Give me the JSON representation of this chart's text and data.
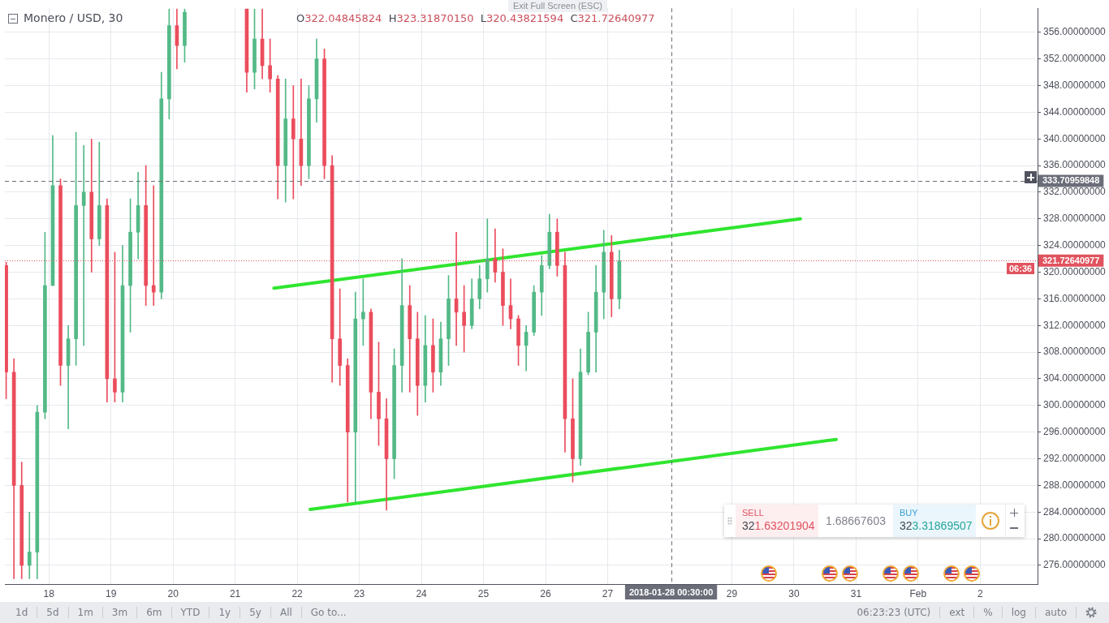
{
  "chart_data": {
    "type": "candlestick",
    "title": "Monero / USD, 30",
    "subtitle": "O322.04845824 H323.31870150 L320.43821594 C321.72640977",
    "x": [
      "2018-01-17T07:30",
      "2018-01-17T10:30",
      "2018-01-17T13:30",
      "2018-01-17T16:30",
      "2018-01-17T19:30",
      "2018-01-17T22:30",
      "2018-01-18T01:30",
      "2018-01-18T04:30",
      "2018-01-18T07:30",
      "2018-01-18T10:30",
      "2018-01-18T13:30",
      "2018-01-18T16:30",
      "2018-01-18T19:30",
      "2018-01-18T22:30",
      "2018-01-19T01:30",
      "2018-01-19T04:30",
      "2018-01-19T07:30",
      "2018-01-19T10:30",
      "2018-01-19T13:30",
      "2018-01-19T16:30",
      "2018-01-19T19:30",
      "2018-01-19T22:30",
      "2018-01-20T01:30",
      "2018-01-20T04:30",
      "2018-01-21T04:30",
      "2018-01-21T07:30",
      "2018-01-21T10:30",
      "2018-01-21T13:30",
      "2018-01-21T16:30",
      "2018-01-21T19:30",
      "2018-01-21T22:30",
      "2018-01-22T01:30",
      "2018-01-22T04:30",
      "2018-01-22T07:30",
      "2018-01-22T10:30",
      "2018-01-22T13:30",
      "2018-01-22T16:30",
      "2018-01-22T19:30",
      "2018-01-22T22:30",
      "2018-01-23T01:30",
      "2018-01-23T04:30",
      "2018-01-23T07:30",
      "2018-01-23T10:30",
      "2018-01-23T13:30",
      "2018-01-23T16:30",
      "2018-01-23T19:30",
      "2018-01-23T22:30",
      "2018-01-24T01:30",
      "2018-01-24T04:30",
      "2018-01-24T07:30",
      "2018-01-24T10:30",
      "2018-01-24T13:30",
      "2018-01-24T16:30",
      "2018-01-24T19:30",
      "2018-01-24T22:30",
      "2018-01-25T01:30",
      "2018-01-25T04:30",
      "2018-01-25T07:30",
      "2018-01-25T10:30",
      "2018-01-25T13:30",
      "2018-01-25T16:30",
      "2018-01-25T19:30",
      "2018-01-25T22:30",
      "2018-01-26T01:30",
      "2018-01-26T04:30",
      "2018-01-26T07:30",
      "2018-01-26T10:30",
      "2018-01-26T13:30",
      "2018-01-26T16:30",
      "2018-01-26T19:30",
      "2018-01-26T22:30",
      "2018-01-27T01:30",
      "2018-01-27T04:30"
    ],
    "ohlc": [
      [
        321,
        321.5,
        301,
        305
      ],
      [
        305,
        307,
        274,
        288
      ],
      [
        288,
        291.5,
        274,
        276
      ],
      [
        276,
        284,
        274,
        278
      ],
      [
        278,
        300,
        274,
        299
      ],
      [
        299,
        326,
        298,
        318
      ],
      [
        318,
        340.5,
        318,
        333
      ],
      [
        333,
        334,
        303,
        306
      ],
      [
        306,
        312,
        296.5,
        310
      ],
      [
        310,
        341,
        306,
        330
      ],
      [
        330,
        339,
        309,
        332
      ],
      [
        332,
        340,
        320,
        325
      ],
      [
        325,
        339.5,
        324,
        330
      ],
      [
        330,
        331,
        300.5,
        304
      ],
      [
        304,
        323,
        300.5,
        302
      ],
      [
        302,
        324,
        300.5,
        318
      ],
      [
        318,
        331,
        311,
        326
      ],
      [
        326,
        335,
        322,
        330
      ],
      [
        330,
        336,
        315,
        318
      ],
      [
        318,
        333,
        315,
        317
      ],
      [
        317,
        350,
        316,
        346
      ],
      [
        346,
        359.5,
        343,
        357
      ],
      [
        357,
        359.5,
        350.5,
        354
      ],
      [
        354,
        359.5,
        351.5,
        359
      ],
      [
        359.5,
        359.5,
        347,
        350
      ],
      [
        350,
        359.5,
        347.5,
        355
      ],
      [
        355,
        359.5,
        349,
        351
      ],
      [
        351,
        355,
        347,
        349
      ],
      [
        349,
        349.5,
        331,
        336
      ],
      [
        336,
        349,
        330.5,
        343
      ],
      [
        343,
        348,
        331,
        340
      ],
      [
        340,
        349,
        333,
        336
      ],
      [
        336,
        348,
        334,
        346
      ],
      [
        346,
        355,
        342.5,
        352
      ],
      [
        352,
        353.5,
        334,
        336
      ],
      [
        336,
        337.5,
        303.5,
        310
      ],
      [
        310,
        317.5,
        303,
        306
      ],
      [
        306,
        307,
        285.5,
        296
      ],
      [
        296,
        317,
        285.5,
        313
      ],
      [
        313,
        319,
        309,
        314
      ],
      [
        314,
        314.5,
        298,
        302
      ],
      [
        302,
        309.5,
        294,
        298
      ],
      [
        298,
        301,
        284.3,
        292
      ],
      [
        292,
        308.5,
        289,
        306
      ],
      [
        306,
        322,
        302,
        315
      ],
      [
        315,
        318,
        302,
        310
      ],
      [
        310,
        314,
        298.5,
        303
      ],
      [
        303,
        313.5,
        300.5,
        309
      ],
      [
        309,
        313,
        302,
        305
      ],
      [
        305,
        312.5,
        303,
        310
      ],
      [
        310,
        319.5,
        306,
        316
      ],
      [
        316,
        326,
        309,
        314
      ],
      [
        314,
        318,
        308,
        312
      ],
      [
        312,
        319,
        311.5,
        316
      ],
      [
        316,
        321,
        314.5,
        319
      ],
      [
        319,
        328,
        317,
        322
      ],
      [
        322,
        326.5,
        318.5,
        320
      ],
      [
        320,
        323.5,
        312,
        315
      ],
      [
        315,
        319,
        311.5,
        313
      ],
      [
        313,
        313.5,
        306,
        309
      ],
      [
        309,
        312,
        305.2,
        311
      ],
      [
        311,
        318,
        310.5,
        317
      ],
      [
        317,
        322.5,
        313.5,
        321
      ],
      [
        321,
        328.7,
        320.5,
        326
      ],
      [
        326,
        328,
        319.4,
        321
      ],
      [
        321,
        323,
        293,
        298
      ],
      [
        298,
        304,
        288.5,
        292
      ],
      [
        292,
        308.5,
        291,
        305
      ],
      [
        305,
        314,
        304.6,
        311
      ],
      [
        311,
        321,
        305,
        317
      ],
      [
        317,
        326.3,
        313,
        323
      ],
      [
        323,
        325.5,
        313.3,
        316
      ],
      [
        316,
        323.3,
        314.5,
        321.7
      ]
    ],
    "colors": [
      "#eb4d5c",
      "#eb4d5c",
      "#eb4d5c",
      "#53b987",
      "#53b987",
      "#53b987",
      "#53b987",
      "#eb4d5c",
      "#53b987",
      "#53b987",
      "#53b987",
      "#eb4d5c",
      "#53b987",
      "#eb4d5c",
      "#eb4d5c",
      "#53b987",
      "#53b987",
      "#53b987",
      "#eb4d5c",
      "#eb4d5c",
      "#53b987",
      "#53b987",
      "#eb4d5c",
      "#53b987",
      "#eb4d5c",
      "#53b987",
      "#eb4d5c",
      "#eb4d5c",
      "#eb4d5c",
      "#53b987",
      "#eb4d5c",
      "#eb4d5c",
      "#53b987",
      "#53b987",
      "#eb4d5c",
      "#eb4d5c",
      "#eb4d5c",
      "#eb4d5c",
      "#53b987",
      "#53b987",
      "#eb4d5c",
      "#eb4d5c",
      "#eb4d5c",
      "#53b987",
      "#53b987",
      "#eb4d5c",
      "#eb4d5c",
      "#53b987",
      "#eb4d5c",
      "#53b987",
      "#53b987",
      "#eb4d5c",
      "#eb4d5c",
      "#53b987",
      "#53b987",
      "#53b987",
      "#eb4d5c",
      "#eb4d5c",
      "#eb4d5c",
      "#eb4d5c",
      "#53b987",
      "#53b987",
      "#53b987",
      "#53b987",
      "#eb4d5c",
      "#eb4d5c",
      "#eb4d5c",
      "#53b987",
      "#53b987",
      "#53b987",
      "#53b987",
      "#eb4d5c",
      "#53b987"
    ],
    "series": [
      {
        "type": "line",
        "x": [
          "2018-01-21T15:00",
          "2018-01-30T02:30"
        ],
        "values": [
          317.6,
          328
        ],
        "color": "#2fe52f"
      },
      {
        "type": "line",
        "x": [
          "2018-01-22T05:00",
          "2018-01-30T16:20"
        ],
        "values": [
          284.4,
          294.9
        ],
        "color": "#2fe52f"
      }
    ],
    "xlim": [
      "2018-01-17T07:00",
      "2018-02-02T22:10"
    ],
    "xticks": [
      {
        "value": "2018-01-18",
        "label": "18"
      },
      {
        "value": "2018-01-19",
        "label": "19"
      },
      {
        "value": "2018-01-20",
        "label": "20"
      },
      {
        "value": "2018-01-21",
        "label": "21"
      },
      {
        "value": "2018-01-22",
        "label": "22"
      },
      {
        "value": "2018-01-23",
        "label": "23"
      },
      {
        "value": "2018-01-24",
        "label": "24"
      },
      {
        "value": "2018-01-25",
        "label": "25"
      },
      {
        "value": "2018-01-26",
        "label": "26"
      },
      {
        "value": "2018-01-27",
        "label": "27"
      },
      {
        "value": "2018-01-29",
        "label": "29"
      },
      {
        "value": "2018-01-30",
        "label": "30"
      },
      {
        "value": "2018-01-31",
        "label": "31"
      },
      {
        "value": "2018-02-01",
        "label": "Feb"
      },
      {
        "value": "2018-02-02",
        "label": "2"
      }
    ],
    "ylim": [
      273.2,
      359.6
    ],
    "yticks": [
      {
        "value": 276,
        "label": "276.00000000"
      },
      {
        "value": 280,
        "label": "280.00000000"
      },
      {
        "value": 284,
        "label": "284.00000000"
      },
      {
        "value": 288,
        "label": "288.00000000"
      },
      {
        "value": 292,
        "label": "292.00000000"
      },
      {
        "value": 296,
        "label": "296.00000000"
      },
      {
        "value": 300,
        "label": "300.00000000"
      },
      {
        "value": 304,
        "label": "304.00000000"
      },
      {
        "value": 308,
        "label": "308.00000000"
      },
      {
        "value": 312,
        "label": "312.00000000"
      },
      {
        "value": 316,
        "label": "316.00000000"
      },
      {
        "value": 320,
        "label": "320.00000000"
      },
      {
        "value": 324,
        "label": "324.00000000"
      },
      {
        "value": 328,
        "label": "328.00000000"
      },
      {
        "value": 332,
        "label": "332.00000000"
      },
      {
        "value": 336,
        "label": "336.00000000"
      },
      {
        "value": 340,
        "label": "340.00000000"
      },
      {
        "value": 344,
        "label": "344.00000000"
      },
      {
        "value": 348,
        "label": "348.00000000"
      },
      {
        "value": 352,
        "label": "352.00000000"
      },
      {
        "value": 356,
        "label": "356.00000000"
      }
    ],
    "grid": true,
    "ref_lines": [
      {
        "axis": "y",
        "value": 333.70959848,
        "label": "333.70959848",
        "color": "#6b6e79",
        "line_style": "dashed"
      },
      {
        "axis": "y",
        "value": 321.72640977,
        "label": "321.72640977",
        "color": "#e0535f",
        "line_style": "dotted"
      },
      {
        "axis": "x",
        "value": "2018-01-28T00:30",
        "label": "2018-01-28 00:30:00",
        "color": "#6b6e79",
        "line_style": "dashed"
      }
    ],
    "annotations": [
      "Exit Full Screen (ESC)",
      "06:36",
      "SELL",
      "321.63201904",
      "1.68667603",
      "BUY",
      "323.31869507",
      "1d",
      "5d",
      "1m",
      "3m",
      "6m",
      "YTD",
      "1y",
      "5y",
      "All",
      "Go to...",
      "06:23:23 (UTC)",
      "ext",
      "%",
      "log",
      "auto"
    ]
  }
}
